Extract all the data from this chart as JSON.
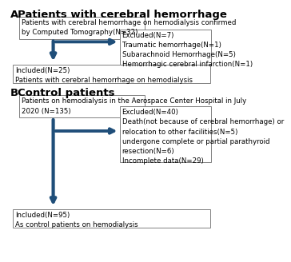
{
  "title_a": "A",
  "title_a_text": "Patients with cerebral hemorrhage",
  "title_b": "B",
  "title_b_text": "Control patients",
  "box_a1": "Patients with cerebral hemorrhage on hemodialysis confirmed\nby Computed Tomography(N=32)",
  "box_a2": "Excluded(N=7)\nTraumatic hemorrhage(N=1)\nSubarachnoid Hemorrhage(N=5)\nHemorrhagic cerebral infarction(N=1)",
  "box_a3": "Included(N=25)\nPatients with cerebral hemorrhage on hemodialysis",
  "box_b1": "Patients on hemodialysis in the Aerospace Center Hospital in July\n2020 (N=135)",
  "box_b2": "Excluded(N=40)\nDeath(not because of cerebral hemorrhage) or\nrelocation to other facilities(N=5)\nundergone complete or partial parathyroid\nresection(N=6)\nIncomplete data(N=29)",
  "box_b3": "Included(N=95)\nAs control patients on hemodialysis",
  "arrow_color": "#1F4E79",
  "box_edge_color": "#808080",
  "bg_color": "#ffffff",
  "text_color": "#000000",
  "font_size": 6.2,
  "title_font_size": 9.5
}
